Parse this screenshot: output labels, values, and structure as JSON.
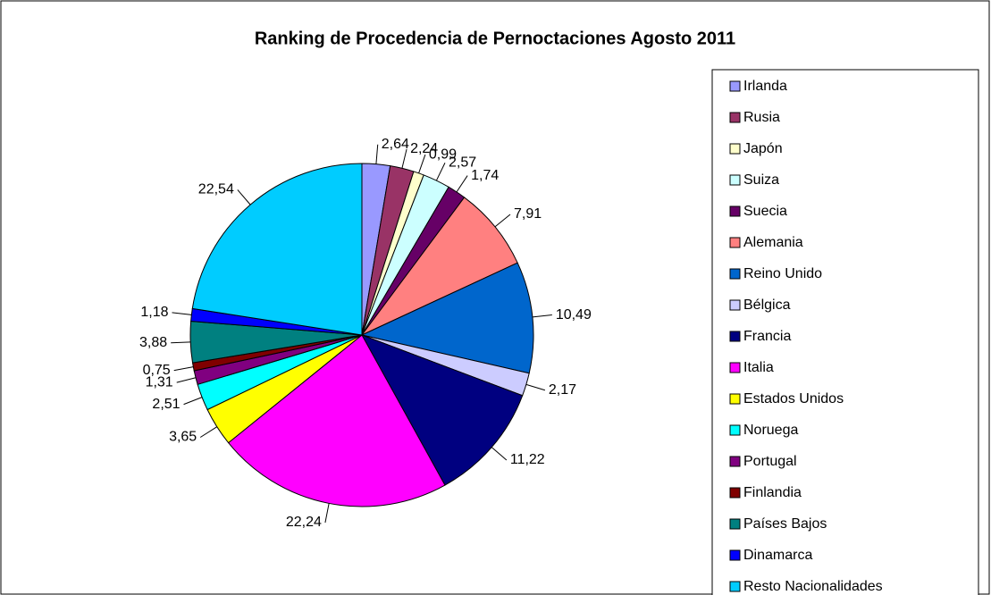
{
  "chart_data": {
    "type": "pie",
    "title": "Ranking de Procedencia de Pernoctaciones Agosto 2011",
    "categories": [
      "Irlanda",
      "Rusia",
      "Japón",
      "Suiza",
      "Suecia",
      "Alemania",
      "Reino Unido",
      "Bélgica",
      "Francia",
      "Italia",
      "Estados Unidos",
      "Noruega",
      "Portugal",
      "Finlandia",
      "Países Bajos",
      "Dinamarca",
      "Resto Nacionalidades"
    ],
    "values": [
      2.64,
      2.24,
      0.99,
      2.57,
      1.74,
      7.91,
      10.49,
      2.17,
      11.22,
      22.24,
      3.65,
      2.51,
      1.31,
      0.75,
      3.88,
      1.18,
      22.54
    ],
    "value_labels": [
      "2,64",
      "2,24",
      "0,99",
      "2,57",
      "1,74",
      "7,91",
      "10,49",
      "2,17",
      "11,22",
      "22,24",
      "3,65",
      "2,51",
      "1,31",
      "0,75",
      "3,88",
      "1,18",
      "22,54"
    ],
    "colors": [
      "#9999ff",
      "#993366",
      "#ffffcc",
      "#ccffff",
      "#660066",
      "#ff8080",
      "#0066cc",
      "#ccccff",
      "#000080",
      "#ff00ff",
      "#ffff00",
      "#00ffff",
      "#800080",
      "#800000",
      "#008080",
      "#0000ff",
      "#00ccff"
    ],
    "legend": "right"
  }
}
